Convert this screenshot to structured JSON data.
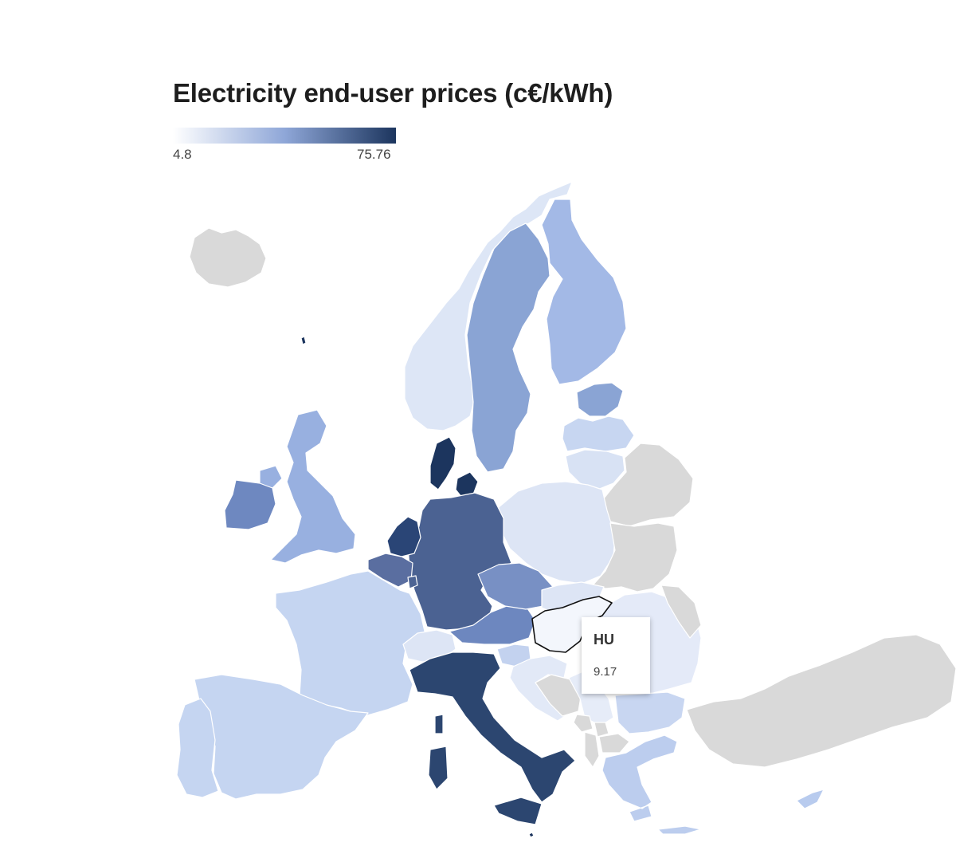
{
  "chart": {
    "title": "Electricity end-user prices (c€/kWh)",
    "legend": {
      "min": "4.8",
      "max": "75.76",
      "color_low": "#ffffff",
      "color_high": "#1c355e"
    },
    "no_data_color": "#d9d9d9"
  },
  "tooltip": {
    "code": "HU",
    "value": "9.17"
  },
  "chart_data": {
    "type": "choropleth",
    "title": "Electricity end-user prices (c€/kWh)",
    "scale": {
      "min": 4.8,
      "max": 75.76
    },
    "hovered": "HU",
    "values": {
      "HU": 9.17
    }
  },
  "regions": [
    {
      "code": "IS",
      "fill": "#d9d9d9"
    },
    {
      "code": "NO",
      "fill": "#dde6f6"
    },
    {
      "code": "SE",
      "fill": "#8aa4d4"
    },
    {
      "code": "FI",
      "fill": "#a3b9e6"
    },
    {
      "code": "EE",
      "fill": "#8aa4d4"
    },
    {
      "code": "LV",
      "fill": "#c7d6f1"
    },
    {
      "code": "LT",
      "fill": "#d8e2f4"
    },
    {
      "code": "BY",
      "fill": "#d9d9d9"
    },
    {
      "code": "PL",
      "fill": "#dde5f5"
    },
    {
      "code": "UA",
      "fill": "#d9d9d9"
    },
    {
      "code": "DK",
      "fill": "#1c355e"
    },
    {
      "code": "DE",
      "fill": "#4b6292"
    },
    {
      "code": "NL",
      "fill": "#2a4576"
    },
    {
      "code": "BE",
      "fill": "#5a6ea0"
    },
    {
      "code": "LU",
      "fill": "#4d6494"
    },
    {
      "code": "FR",
      "fill": "#c5d5f1"
    },
    {
      "code": "ES",
      "fill": "#c5d5f1"
    },
    {
      "code": "PT",
      "fill": "#c5d5f1"
    },
    {
      "code": "CH",
      "fill": "#dde5f5"
    },
    {
      "code": "AT",
      "fill": "#6d87bf"
    },
    {
      "code": "CZ",
      "fill": "#7890c4"
    },
    {
      "code": "SK",
      "fill": "#dde5f5"
    },
    {
      "code": "HU",
      "fill": "#f3f6fc"
    },
    {
      "code": "SI",
      "fill": "#c3d2ef"
    },
    {
      "code": "HR",
      "fill": "#e2e9f7"
    },
    {
      "code": "BA",
      "fill": "#d9d9d9"
    },
    {
      "code": "RS",
      "fill": "#e6ecf8"
    },
    {
      "code": "RO",
      "fill": "#e4eaf8"
    },
    {
      "code": "MD",
      "fill": "#d9d9d9"
    },
    {
      "code": "BG",
      "fill": "#c8d6f1"
    },
    {
      "code": "MK",
      "fill": "#d9d9d9"
    },
    {
      "code": "AL",
      "fill": "#d9d9d9"
    },
    {
      "code": "ME",
      "fill": "#d9d9d9"
    },
    {
      "code": "XK",
      "fill": "#d9d9d9"
    },
    {
      "code": "GR",
      "fill": "#bccdee"
    },
    {
      "code": "TR",
      "fill": "#d9d9d9"
    },
    {
      "code": "CY",
      "fill": "#b8cbee"
    },
    {
      "code": "IT",
      "fill": "#2c4670"
    },
    {
      "code": "UK",
      "fill": "#98b0e0"
    },
    {
      "code": "IE",
      "fill": "#6e88c0"
    },
    {
      "code": "MT",
      "fill": "#1c355e"
    }
  ]
}
